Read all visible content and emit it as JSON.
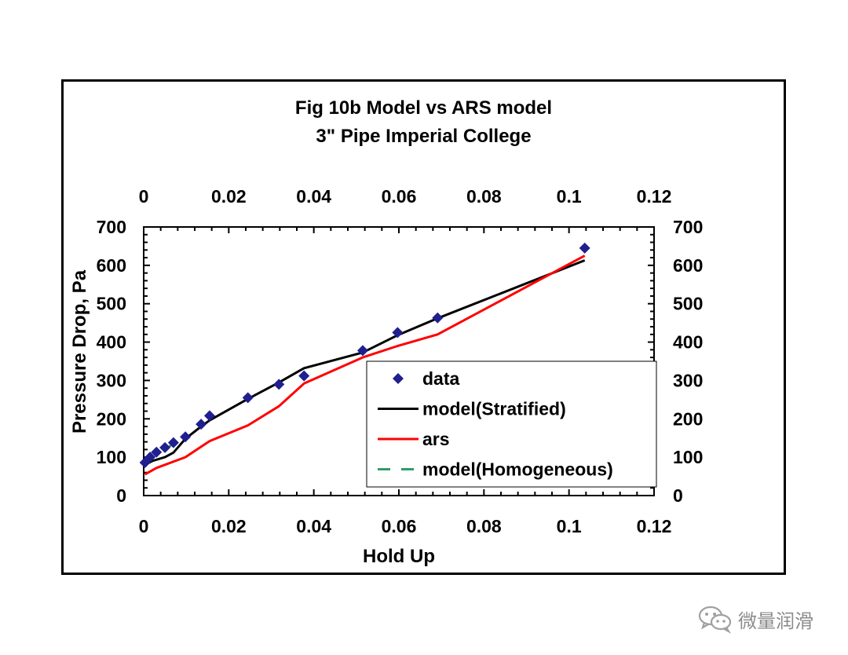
{
  "chart_data": {
    "type": "line",
    "title": "Fig 10b  Model vs ARS model",
    "subtitle": "3\" Pipe Imperial College",
    "xlabel": "Hold Up",
    "ylabel": "Pressure Drop, Pa",
    "xlim": [
      0,
      0.12
    ],
    "ylim": [
      0,
      700
    ],
    "x_ticks": [
      "0",
      "0.02",
      "0.04",
      "0.06",
      "0.08",
      "0.1",
      "0.12"
    ],
    "x_tick_values": [
      0,
      0.02,
      0.04,
      0.06,
      0.08,
      0.1,
      0.12
    ],
    "y_ticks": [
      "0",
      "100",
      "200",
      "300",
      "400",
      "500",
      "600",
      "700"
    ],
    "y_tick_values": [
      0,
      100,
      200,
      300,
      400,
      500,
      600,
      700
    ],
    "grid": false,
    "legend_position": "lower-right",
    "series": [
      {
        "name": "data",
        "kind": "scatter",
        "marker": "diamond",
        "color": "#1f1f8f",
        "x": [
          0.0003,
          0.0015,
          0.003,
          0.005,
          0.007,
          0.0098,
          0.0135,
          0.0155,
          0.0245,
          0.0318,
          0.0377,
          0.0515,
          0.0597,
          0.0691,
          0.1037
        ],
        "y": [
          86,
          100,
          113,
          125,
          138,
          153,
          186,
          208,
          255,
          290,
          312,
          378,
          425,
          463,
          645
        ]
      },
      {
        "name": "model(Stratified)",
        "kind": "line",
        "color": "#000000",
        "x": [
          0.0003,
          0.002,
          0.005,
          0.007,
          0.0098,
          0.0135,
          0.0155,
          0.0245,
          0.0318,
          0.0377,
          0.0515,
          0.0597,
          0.0691,
          0.1037
        ],
        "y": [
          80,
          90,
          100,
          112,
          148,
          180,
          196,
          252,
          295,
          332,
          373,
          418,
          462,
          613
        ]
      },
      {
        "name": "ars",
        "kind": "line",
        "color": "#ff0000",
        "x": [
          0.0003,
          0.003,
          0.0098,
          0.0155,
          0.0245,
          0.0318,
          0.0377,
          0.0515,
          0.0597,
          0.0691,
          0.1037
        ],
        "y": [
          55,
          72,
          100,
          142,
          183,
          233,
          292,
          360,
          390,
          420,
          625
        ]
      },
      {
        "name": "model(Homogeneous)",
        "kind": "line",
        "dash": "dashed",
        "color": "#2e9d6a",
        "x": [
          0.0003,
          0.0015,
          0.003,
          0.005,
          0.007
        ],
        "y": [
          88,
          98,
          108,
          120,
          135
        ]
      }
    ]
  },
  "watermark": {
    "text": "微量润滑",
    "icon": "wechat-icon"
  }
}
